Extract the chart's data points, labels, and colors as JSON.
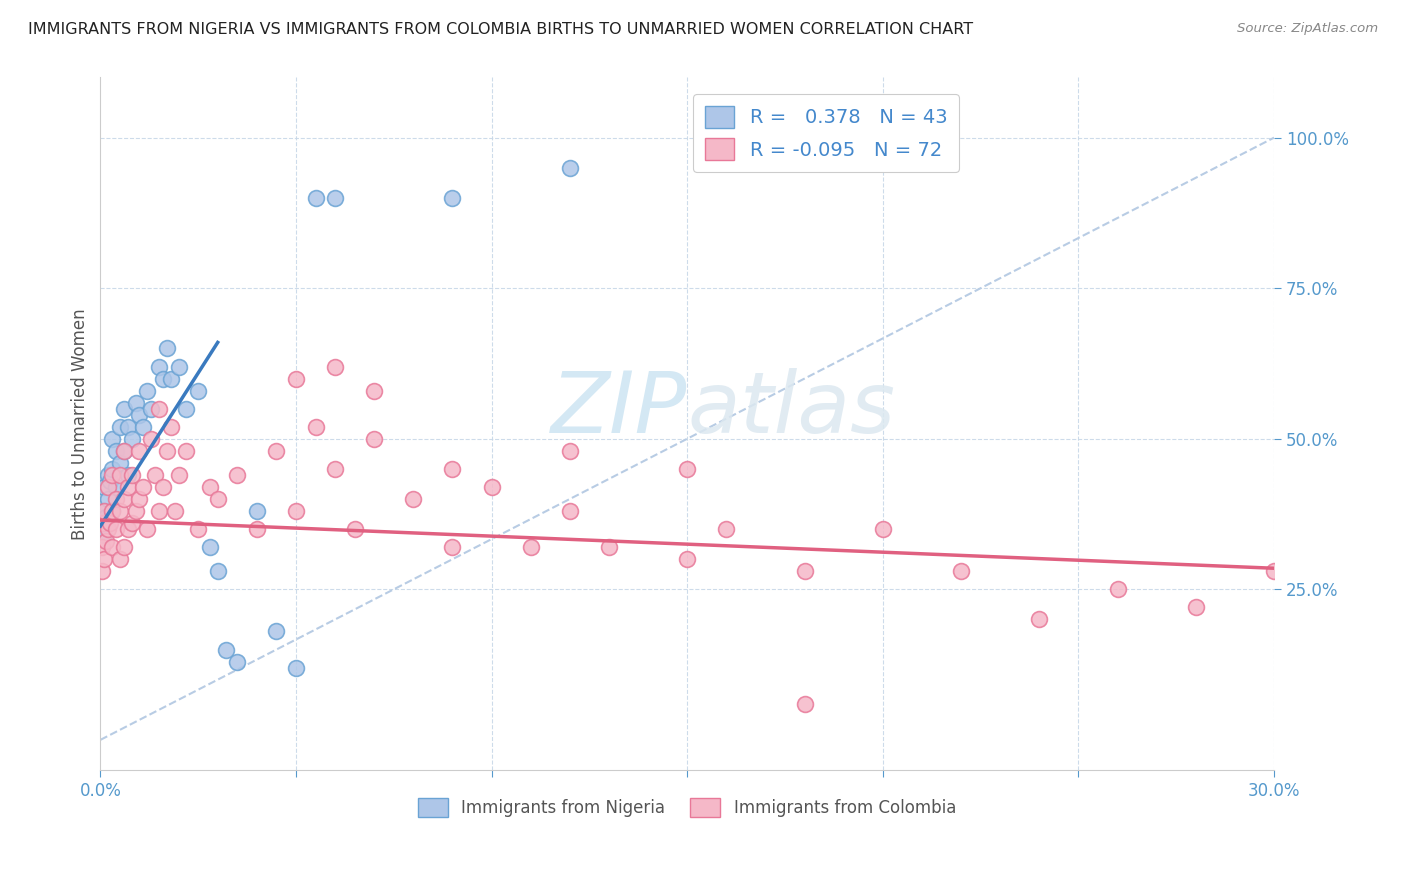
{
  "title": "IMMIGRANTS FROM NIGERIA VS IMMIGRANTS FROM COLOMBIA BIRTHS TO UNMARRIED WOMEN CORRELATION CHART",
  "source": "Source: ZipAtlas.com",
  "ylabel": "Births to Unmarried Women",
  "legend_nigeria": "Immigrants from Nigeria",
  "legend_colombia": "Immigrants from Colombia",
  "r_nigeria": 0.378,
  "n_nigeria": 43,
  "r_colombia": -0.095,
  "n_colombia": 72,
  "nigeria_color": "#aec6e8",
  "colombia_color": "#f5b8c8",
  "nigeria_edge": "#6aa3d4",
  "colombia_edge": "#e87898",
  "trend_nigeria_color": "#3a7abf",
  "trend_colombia_color": "#e06080",
  "diag_color": "#b8cce4",
  "watermark_color": "#d4e8f4",
  "background_color": "#ffffff",
  "title_color": "#222222",
  "axis_label_color": "#5599cc",
  "xlim": [
    0.0,
    0.3
  ],
  "ylim": [
    -0.05,
    1.1
  ],
  "ytick_positions": [
    0.25,
    0.5,
    0.75,
    1.0
  ],
  "ytick_labels": [
    "25.0%",
    "50.0%",
    "75.0%",
    "100.0%"
  ],
  "nigeria_x": [
    0.0005,
    0.001,
    0.001,
    0.001,
    0.0015,
    0.002,
    0.002,
    0.0025,
    0.003,
    0.003,
    0.003,
    0.004,
    0.004,
    0.005,
    0.005,
    0.006,
    0.006,
    0.007,
    0.007,
    0.008,
    0.009,
    0.01,
    0.011,
    0.012,
    0.013,
    0.015,
    0.016,
    0.017,
    0.018,
    0.02,
    0.022,
    0.025,
    0.028,
    0.03,
    0.032,
    0.035,
    0.04,
    0.045,
    0.05,
    0.055,
    0.06,
    0.09,
    0.12
  ],
  "nigeria_y": [
    0.36,
    0.34,
    0.38,
    0.42,
    0.37,
    0.4,
    0.44,
    0.43,
    0.38,
    0.45,
    0.5,
    0.42,
    0.48,
    0.46,
    0.52,
    0.48,
    0.55,
    0.44,
    0.52,
    0.5,
    0.56,
    0.54,
    0.52,
    0.58,
    0.55,
    0.62,
    0.6,
    0.65,
    0.6,
    0.62,
    0.55,
    0.58,
    0.32,
    0.28,
    0.15,
    0.13,
    0.38,
    0.18,
    0.12,
    0.9,
    0.9,
    0.9,
    0.95
  ],
  "colombia_x": [
    0.0003,
    0.0005,
    0.0008,
    0.001,
    0.001,
    0.0015,
    0.002,
    0.002,
    0.0025,
    0.003,
    0.003,
    0.003,
    0.004,
    0.004,
    0.005,
    0.005,
    0.005,
    0.006,
    0.006,
    0.006,
    0.007,
    0.007,
    0.008,
    0.008,
    0.009,
    0.01,
    0.01,
    0.011,
    0.012,
    0.013,
    0.014,
    0.015,
    0.015,
    0.016,
    0.017,
    0.018,
    0.019,
    0.02,
    0.022,
    0.025,
    0.028,
    0.03,
    0.035,
    0.04,
    0.045,
    0.05,
    0.055,
    0.06,
    0.065,
    0.07,
    0.08,
    0.09,
    0.1,
    0.11,
    0.12,
    0.13,
    0.15,
    0.16,
    0.18,
    0.2,
    0.22,
    0.24,
    0.26,
    0.28,
    0.3,
    0.05,
    0.06,
    0.07,
    0.09,
    0.12,
    0.15,
    0.18
  ],
  "colombia_y": [
    0.32,
    0.28,
    0.36,
    0.3,
    0.38,
    0.33,
    0.35,
    0.42,
    0.36,
    0.32,
    0.38,
    0.44,
    0.35,
    0.4,
    0.3,
    0.38,
    0.44,
    0.32,
    0.4,
    0.48,
    0.35,
    0.42,
    0.36,
    0.44,
    0.38,
    0.4,
    0.48,
    0.42,
    0.35,
    0.5,
    0.44,
    0.38,
    0.55,
    0.42,
    0.48,
    0.52,
    0.38,
    0.44,
    0.48,
    0.35,
    0.42,
    0.4,
    0.44,
    0.35,
    0.48,
    0.38,
    0.52,
    0.45,
    0.35,
    0.5,
    0.4,
    0.32,
    0.42,
    0.32,
    0.38,
    0.32,
    0.3,
    0.35,
    0.28,
    0.35,
    0.28,
    0.2,
    0.25,
    0.22,
    0.28,
    0.6,
    0.62,
    0.58,
    0.45,
    0.48,
    0.45,
    0.06
  ]
}
